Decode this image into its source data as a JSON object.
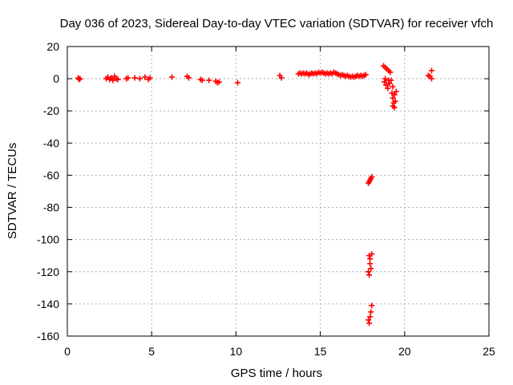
{
  "chart_data": {
    "type": "scatter",
    "title": "Day 036 of 2023, Sidereal Day-to-day VTEC variation (SDTVAR) for receiver vfch",
    "xlabel": "GPS time / hours",
    "ylabel": "SDTVAR / TECUs",
    "xlim": [
      0,
      25
    ],
    "ylim": [
      -160,
      20
    ],
    "xticks": [
      0,
      5,
      10,
      15,
      20,
      25
    ],
    "yticks": [
      20,
      0,
      -20,
      -40,
      -60,
      -80,
      -100,
      -120,
      -140,
      -160
    ],
    "grid": true,
    "marker": "plus",
    "color": "#ff0000",
    "series": [
      {
        "name": "SDTVAR",
        "points": [
          [
            0.65,
            0.5
          ],
          [
            0.7,
            -0.5
          ],
          [
            0.75,
            0
          ],
          [
            2.3,
            0
          ],
          [
            2.4,
            1
          ],
          [
            2.5,
            -0.5
          ],
          [
            2.6,
            0.5
          ],
          [
            2.7,
            -1
          ],
          [
            2.8,
            1.5
          ],
          [
            2.9,
            0
          ],
          [
            3.0,
            -0.5
          ],
          [
            3.5,
            0
          ],
          [
            3.6,
            0.5
          ],
          [
            4.0,
            0.5
          ],
          [
            4.3,
            0
          ],
          [
            4.6,
            1
          ],
          [
            4.8,
            -0.5
          ],
          [
            4.9,
            0.5
          ],
          [
            6.2,
            1
          ],
          [
            7.1,
            1.5
          ],
          [
            7.2,
            0.5
          ],
          [
            7.9,
            -0.5
          ],
          [
            8.0,
            -1
          ],
          [
            8.4,
            -1
          ],
          [
            8.8,
            -1.5
          ],
          [
            8.9,
            -2.5
          ],
          [
            9.0,
            -2
          ],
          [
            10.1,
            -2.5
          ],
          [
            12.6,
            2
          ],
          [
            12.7,
            0.5
          ],
          [
            13.7,
            3
          ],
          [
            13.8,
            3.5
          ],
          [
            13.9,
            3
          ],
          [
            14.0,
            3.5
          ],
          [
            14.1,
            3
          ],
          [
            14.2,
            3.5
          ],
          [
            14.3,
            2.5
          ],
          [
            14.4,
            3
          ],
          [
            14.5,
            3.5
          ],
          [
            14.6,
            3
          ],
          [
            14.7,
            3.5
          ],
          [
            14.8,
            3
          ],
          [
            14.9,
            4
          ],
          [
            15.0,
            3.5
          ],
          [
            15.1,
            4
          ],
          [
            15.2,
            3.5
          ],
          [
            15.3,
            3
          ],
          [
            15.4,
            3.5
          ],
          [
            15.5,
            3
          ],
          [
            15.6,
            3.5
          ],
          [
            15.7,
            3
          ],
          [
            15.8,
            4
          ],
          [
            15.9,
            3.5
          ],
          [
            16.0,
            3
          ],
          [
            16.1,
            2.5
          ],
          [
            16.2,
            2
          ],
          [
            16.3,
            2.5
          ],
          [
            16.4,
            2
          ],
          [
            16.5,
            1.5
          ],
          [
            16.6,
            2
          ],
          [
            16.7,
            1.5
          ],
          [
            16.8,
            1
          ],
          [
            16.9,
            1.5
          ],
          [
            17.0,
            1
          ],
          [
            17.1,
            1.5
          ],
          [
            17.2,
            2
          ],
          [
            17.3,
            1.5
          ],
          [
            17.4,
            2
          ],
          [
            17.5,
            1.5
          ],
          [
            17.6,
            2
          ],
          [
            17.7,
            2.5
          ],
          [
            17.9,
            -64
          ],
          [
            17.95,
            -63
          ],
          [
            18.0,
            -62
          ],
          [
            18.05,
            -61
          ],
          [
            17.85,
            -65
          ],
          [
            17.9,
            -110
          ],
          [
            17.95,
            -115
          ],
          [
            18.0,
            -118
          ],
          [
            17.9,
            -122
          ],
          [
            17.95,
            -112
          ],
          [
            18.05,
            -109
          ],
          [
            17.85,
            -120
          ],
          [
            17.9,
            -152
          ],
          [
            17.95,
            -148
          ],
          [
            18.0,
            -145
          ],
          [
            18.05,
            -141
          ],
          [
            17.85,
            -150
          ],
          [
            18.75,
            8
          ],
          [
            18.85,
            7
          ],
          [
            18.95,
            6
          ],
          [
            19.05,
            5
          ],
          [
            19.15,
            4
          ],
          [
            18.8,
            -2
          ],
          [
            18.9,
            -4
          ],
          [
            19.0,
            -6
          ],
          [
            19.1,
            -3
          ],
          [
            19.2,
            -1
          ],
          [
            19.3,
            -5
          ],
          [
            18.85,
            0
          ],
          [
            19.05,
            -1
          ],
          [
            19.25,
            -9
          ],
          [
            19.3,
            -12
          ],
          [
            19.35,
            -15
          ],
          [
            19.4,
            -18
          ],
          [
            19.45,
            -14
          ],
          [
            19.4,
            -10
          ],
          [
            19.5,
            -8
          ],
          [
            19.3,
            -17
          ],
          [
            21.4,
            2
          ],
          [
            21.5,
            1.5
          ],
          [
            21.6,
            0
          ],
          [
            21.6,
            5
          ]
        ]
      }
    ]
  }
}
